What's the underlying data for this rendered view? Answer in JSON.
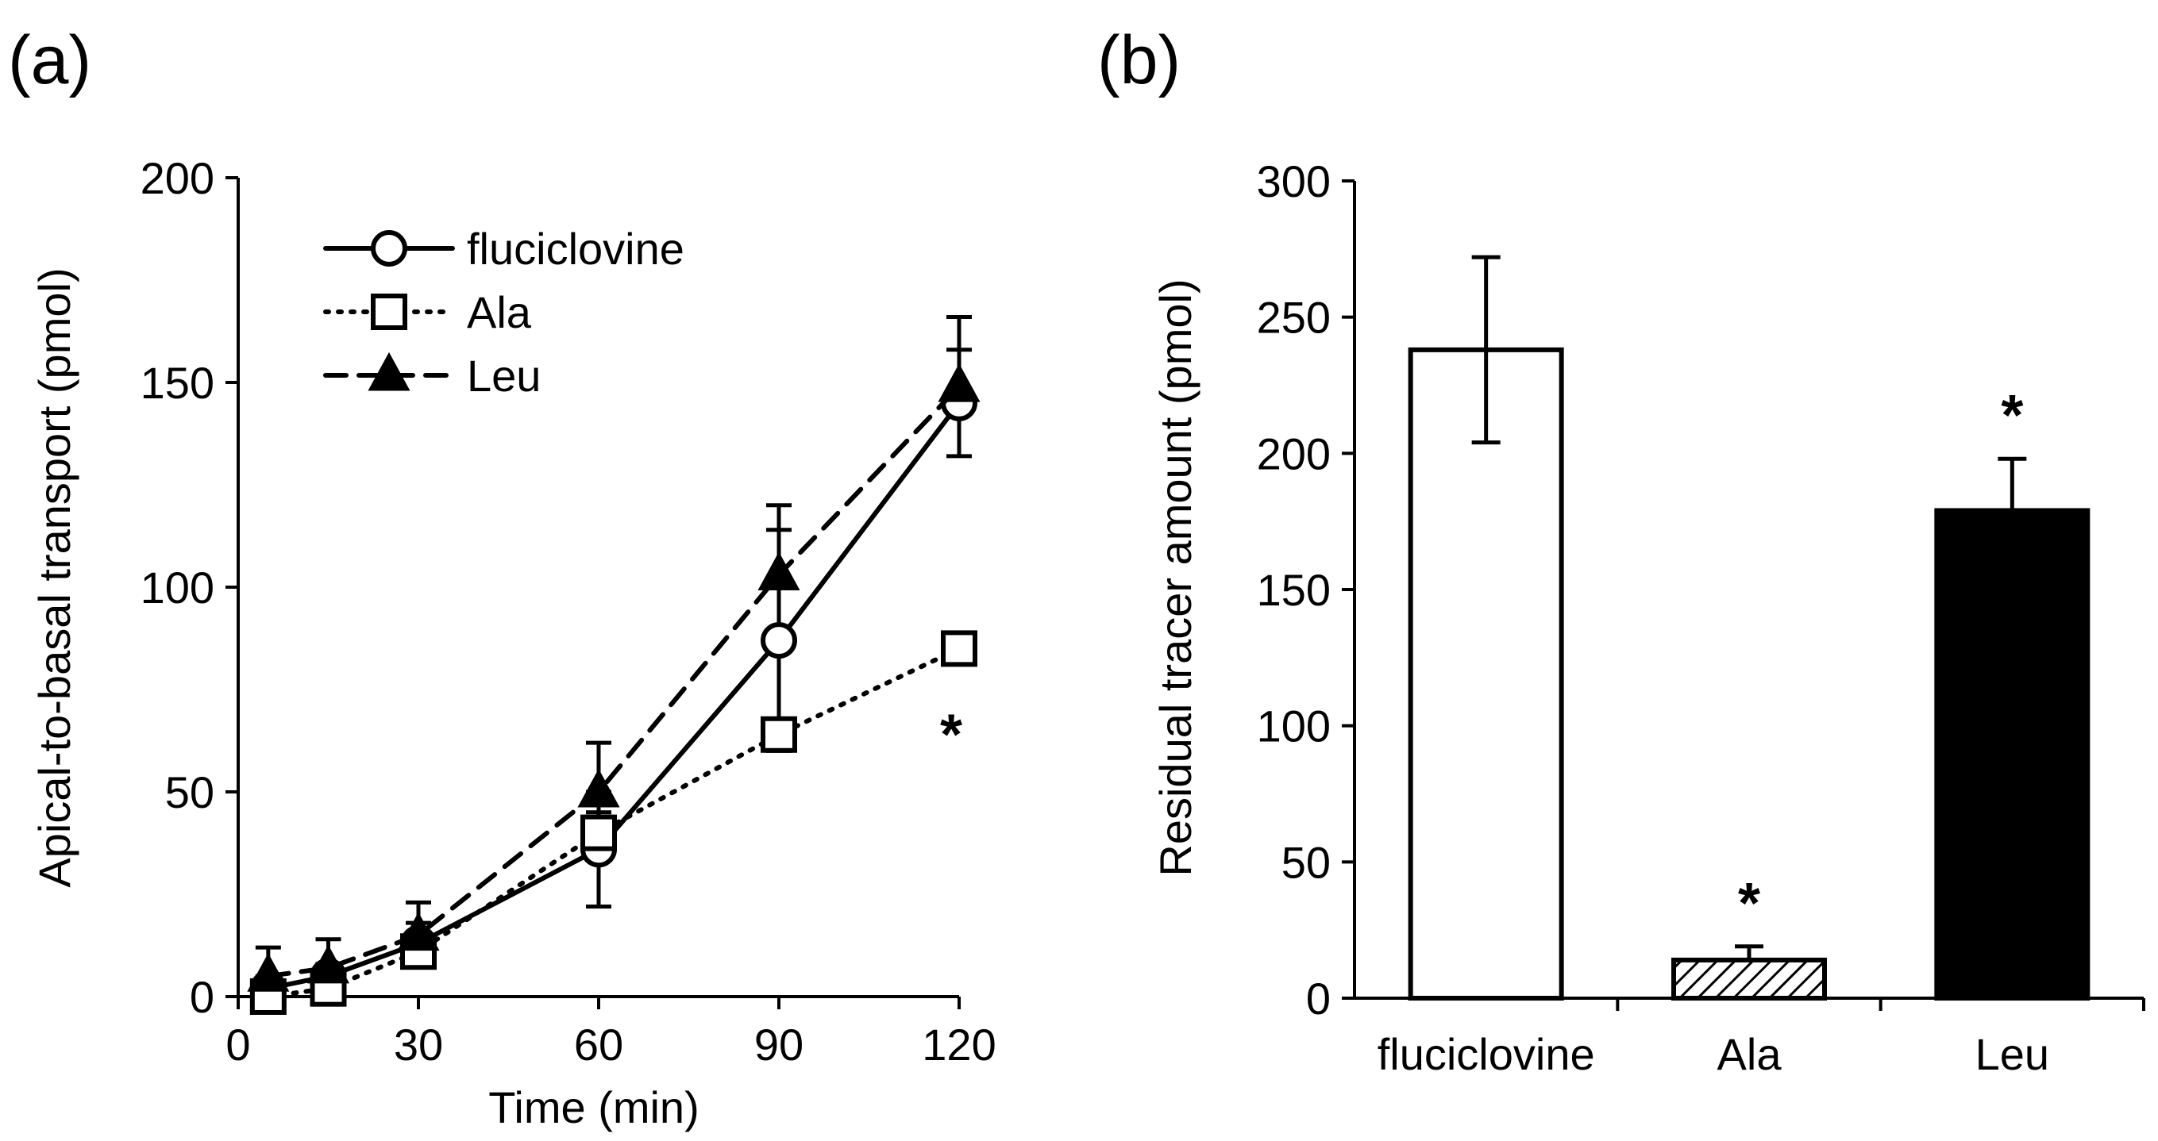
{
  "chart_data": [
    {
      "panel": "(a)",
      "type": "line",
      "xlabel": "Time (min)",
      "ylabel": "Apical-to-basal transport (pmol)",
      "xlim": [
        0,
        120
      ],
      "ylim": [
        0,
        200
      ],
      "xticks": [
        "0",
        "30",
        "60",
        "90",
        "120"
      ],
      "yticks": [
        "0",
        "50",
        "100",
        "150",
        "200"
      ],
      "legend_position": "top-left",
      "series": [
        {
          "name": "fluciclovine",
          "line": "solid",
          "marker": "open-circle",
          "x": [
            5,
            15,
            30,
            60,
            90,
            120
          ],
          "y": [
            2,
            5,
            13,
            36,
            87,
            145
          ],
          "err": [
            3,
            3,
            5,
            14,
            27,
            13
          ]
        },
        {
          "name": "Ala",
          "line": "dotted",
          "marker": "open-square",
          "x": [
            5,
            15,
            30,
            60,
            90,
            120
          ],
          "y": [
            0,
            2,
            11,
            40,
            64,
            85
          ],
          "err": [
            2,
            2,
            3,
            5,
            3,
            3
          ]
        },
        {
          "name": "Leu",
          "line": "dashed",
          "marker": "filled-triangle",
          "x": [
            5,
            15,
            30,
            60,
            90,
            120
          ],
          "y": [
            5,
            7,
            15,
            50,
            103,
            149
          ],
          "err": [
            7,
            7,
            8,
            12,
            17,
            17
          ]
        }
      ],
      "annotations": [
        {
          "text": "*",
          "x": 120,
          "y": 65
        }
      ]
    },
    {
      "panel": "(b)",
      "type": "bar",
      "xlabel": "",
      "ylabel": "Residual tracer amount (pmol)",
      "ylim": [
        0,
        300
      ],
      "yticks": [
        "0",
        "50",
        "100",
        "150",
        "200",
        "250",
        "300"
      ],
      "categories": [
        "fluciclovine",
        "Ala",
        "Leu"
      ],
      "values": [
        238,
        14,
        179
      ],
      "err": [
        34,
        5,
        19
      ],
      "fills": [
        "open",
        "hatched",
        "solid"
      ],
      "significance": [
        "",
        "*",
        "*"
      ]
    }
  ],
  "colors": {
    "ink": "#000000",
    "background": "#ffffff"
  }
}
